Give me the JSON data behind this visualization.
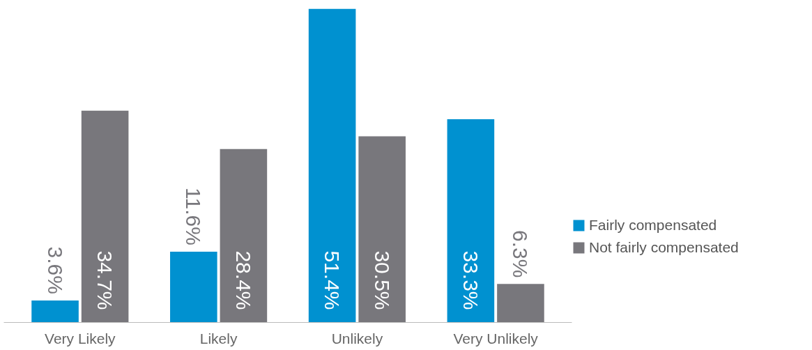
{
  "chart_data": {
    "type": "bar",
    "categories": [
      "Very Likely",
      "Likely",
      "Unlikely",
      "Very Unlikely"
    ],
    "series": [
      {
        "name": "Fairly compensated",
        "color": "#0091d0",
        "values": [
          3.6,
          11.6,
          51.4,
          33.3
        ],
        "value_labels": [
          "3.6%",
          "11.6%",
          "51.4%",
          "33.3%"
        ]
      },
      {
        "name": "Not fairly compensated",
        "color": "#78777c",
        "values": [
          34.7,
          28.4,
          30.5,
          6.3
        ],
        "value_labels": [
          "34.7%",
          "28.4%",
          "30.5%",
          "6.3%"
        ]
      }
    ],
    "legend": "right",
    "grid": false
  }
}
